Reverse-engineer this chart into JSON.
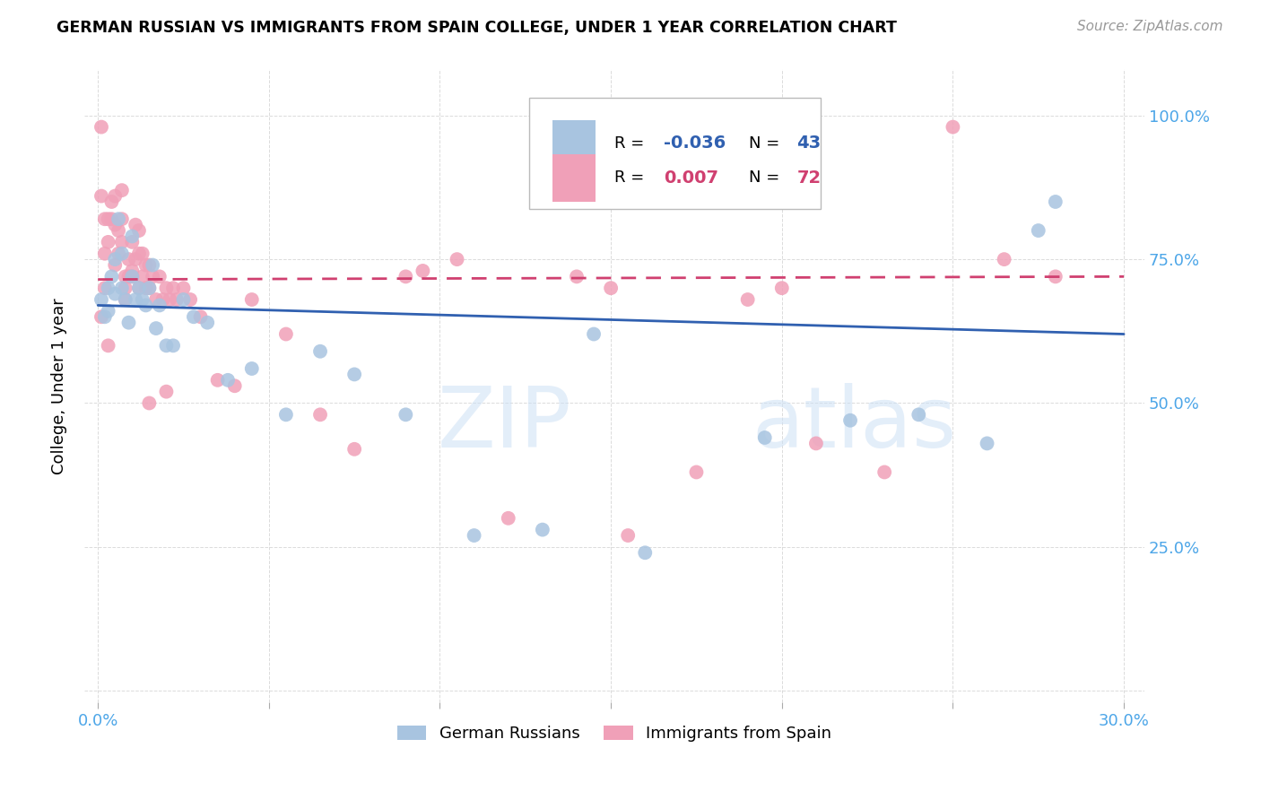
{
  "title": "GERMAN RUSSIAN VS IMMIGRANTS FROM SPAIN COLLEGE, UNDER 1 YEAR CORRELATION CHART",
  "source": "Source: ZipAtlas.com",
  "ylabel": "College, Under 1 year",
  "x_min": 0.0,
  "x_max": 0.3,
  "y_min": 0.0,
  "y_max": 1.05,
  "blue_color": "#a8c4e0",
  "pink_color": "#f0a0b8",
  "blue_line_color": "#3060b0",
  "pink_line_color": "#d04070",
  "blue_line_solid": true,
  "pink_line_dashed": true,
  "legend_R_blue": "-0.036",
  "legend_N_blue": "43",
  "legend_R_pink": "0.007",
  "legend_N_pink": "72",
  "blue_line_y0": 0.67,
  "blue_line_y1": 0.62,
  "pink_line_y0": 0.715,
  "pink_line_y1": 0.72,
  "blue_scatter_x": [
    0.001,
    0.002,
    0.003,
    0.003,
    0.004,
    0.005,
    0.005,
    0.006,
    0.007,
    0.007,
    0.008,
    0.009,
    0.01,
    0.01,
    0.011,
    0.012,
    0.013,
    0.014,
    0.015,
    0.016,
    0.017,
    0.018,
    0.02,
    0.022,
    0.025,
    0.028,
    0.032,
    0.038,
    0.045,
    0.055,
    0.065,
    0.075,
    0.09,
    0.11,
    0.13,
    0.145,
    0.16,
    0.195,
    0.22,
    0.24,
    0.26,
    0.275,
    0.28
  ],
  "blue_scatter_y": [
    0.68,
    0.65,
    0.7,
    0.66,
    0.72,
    0.75,
    0.69,
    0.82,
    0.76,
    0.7,
    0.68,
    0.64,
    0.79,
    0.72,
    0.68,
    0.7,
    0.68,
    0.67,
    0.7,
    0.74,
    0.63,
    0.67,
    0.6,
    0.6,
    0.68,
    0.65,
    0.64,
    0.54,
    0.56,
    0.48,
    0.59,
    0.55,
    0.48,
    0.27,
    0.28,
    0.62,
    0.24,
    0.44,
    0.47,
    0.48,
    0.43,
    0.8,
    0.85
  ],
  "pink_scatter_x": [
    0.001,
    0.001,
    0.002,
    0.002,
    0.003,
    0.003,
    0.004,
    0.004,
    0.005,
    0.005,
    0.005,
    0.006,
    0.006,
    0.007,
    0.007,
    0.007,
    0.008,
    0.008,
    0.009,
    0.009,
    0.01,
    0.01,
    0.011,
    0.011,
    0.012,
    0.012,
    0.013,
    0.013,
    0.014,
    0.014,
    0.015,
    0.015,
    0.016,
    0.017,
    0.018,
    0.019,
    0.02,
    0.021,
    0.022,
    0.023,
    0.025,
    0.027,
    0.03,
    0.035,
    0.04,
    0.045,
    0.055,
    0.065,
    0.075,
    0.09,
    0.105,
    0.12,
    0.14,
    0.155,
    0.175,
    0.19,
    0.21,
    0.23,
    0.25,
    0.265,
    0.001,
    0.002,
    0.003,
    0.008,
    0.01,
    0.012,
    0.015,
    0.02,
    0.095,
    0.28,
    0.15,
    0.2
  ],
  "pink_scatter_y": [
    0.98,
    0.86,
    0.82,
    0.76,
    0.82,
    0.78,
    0.85,
    0.82,
    0.81,
    0.74,
    0.86,
    0.8,
    0.76,
    0.87,
    0.82,
    0.78,
    0.72,
    0.7,
    0.75,
    0.72,
    0.78,
    0.73,
    0.81,
    0.75,
    0.8,
    0.76,
    0.76,
    0.72,
    0.74,
    0.7,
    0.74,
    0.7,
    0.72,
    0.68,
    0.72,
    0.68,
    0.7,
    0.68,
    0.7,
    0.68,
    0.7,
    0.68,
    0.65,
    0.54,
    0.53,
    0.68,
    0.62,
    0.48,
    0.42,
    0.72,
    0.75,
    0.3,
    0.72,
    0.27,
    0.38,
    0.68,
    0.43,
    0.38,
    0.98,
    0.75,
    0.65,
    0.7,
    0.6,
    0.68,
    0.72,
    0.7,
    0.5,
    0.52,
    0.73,
    0.72,
    0.7,
    0.7
  ]
}
